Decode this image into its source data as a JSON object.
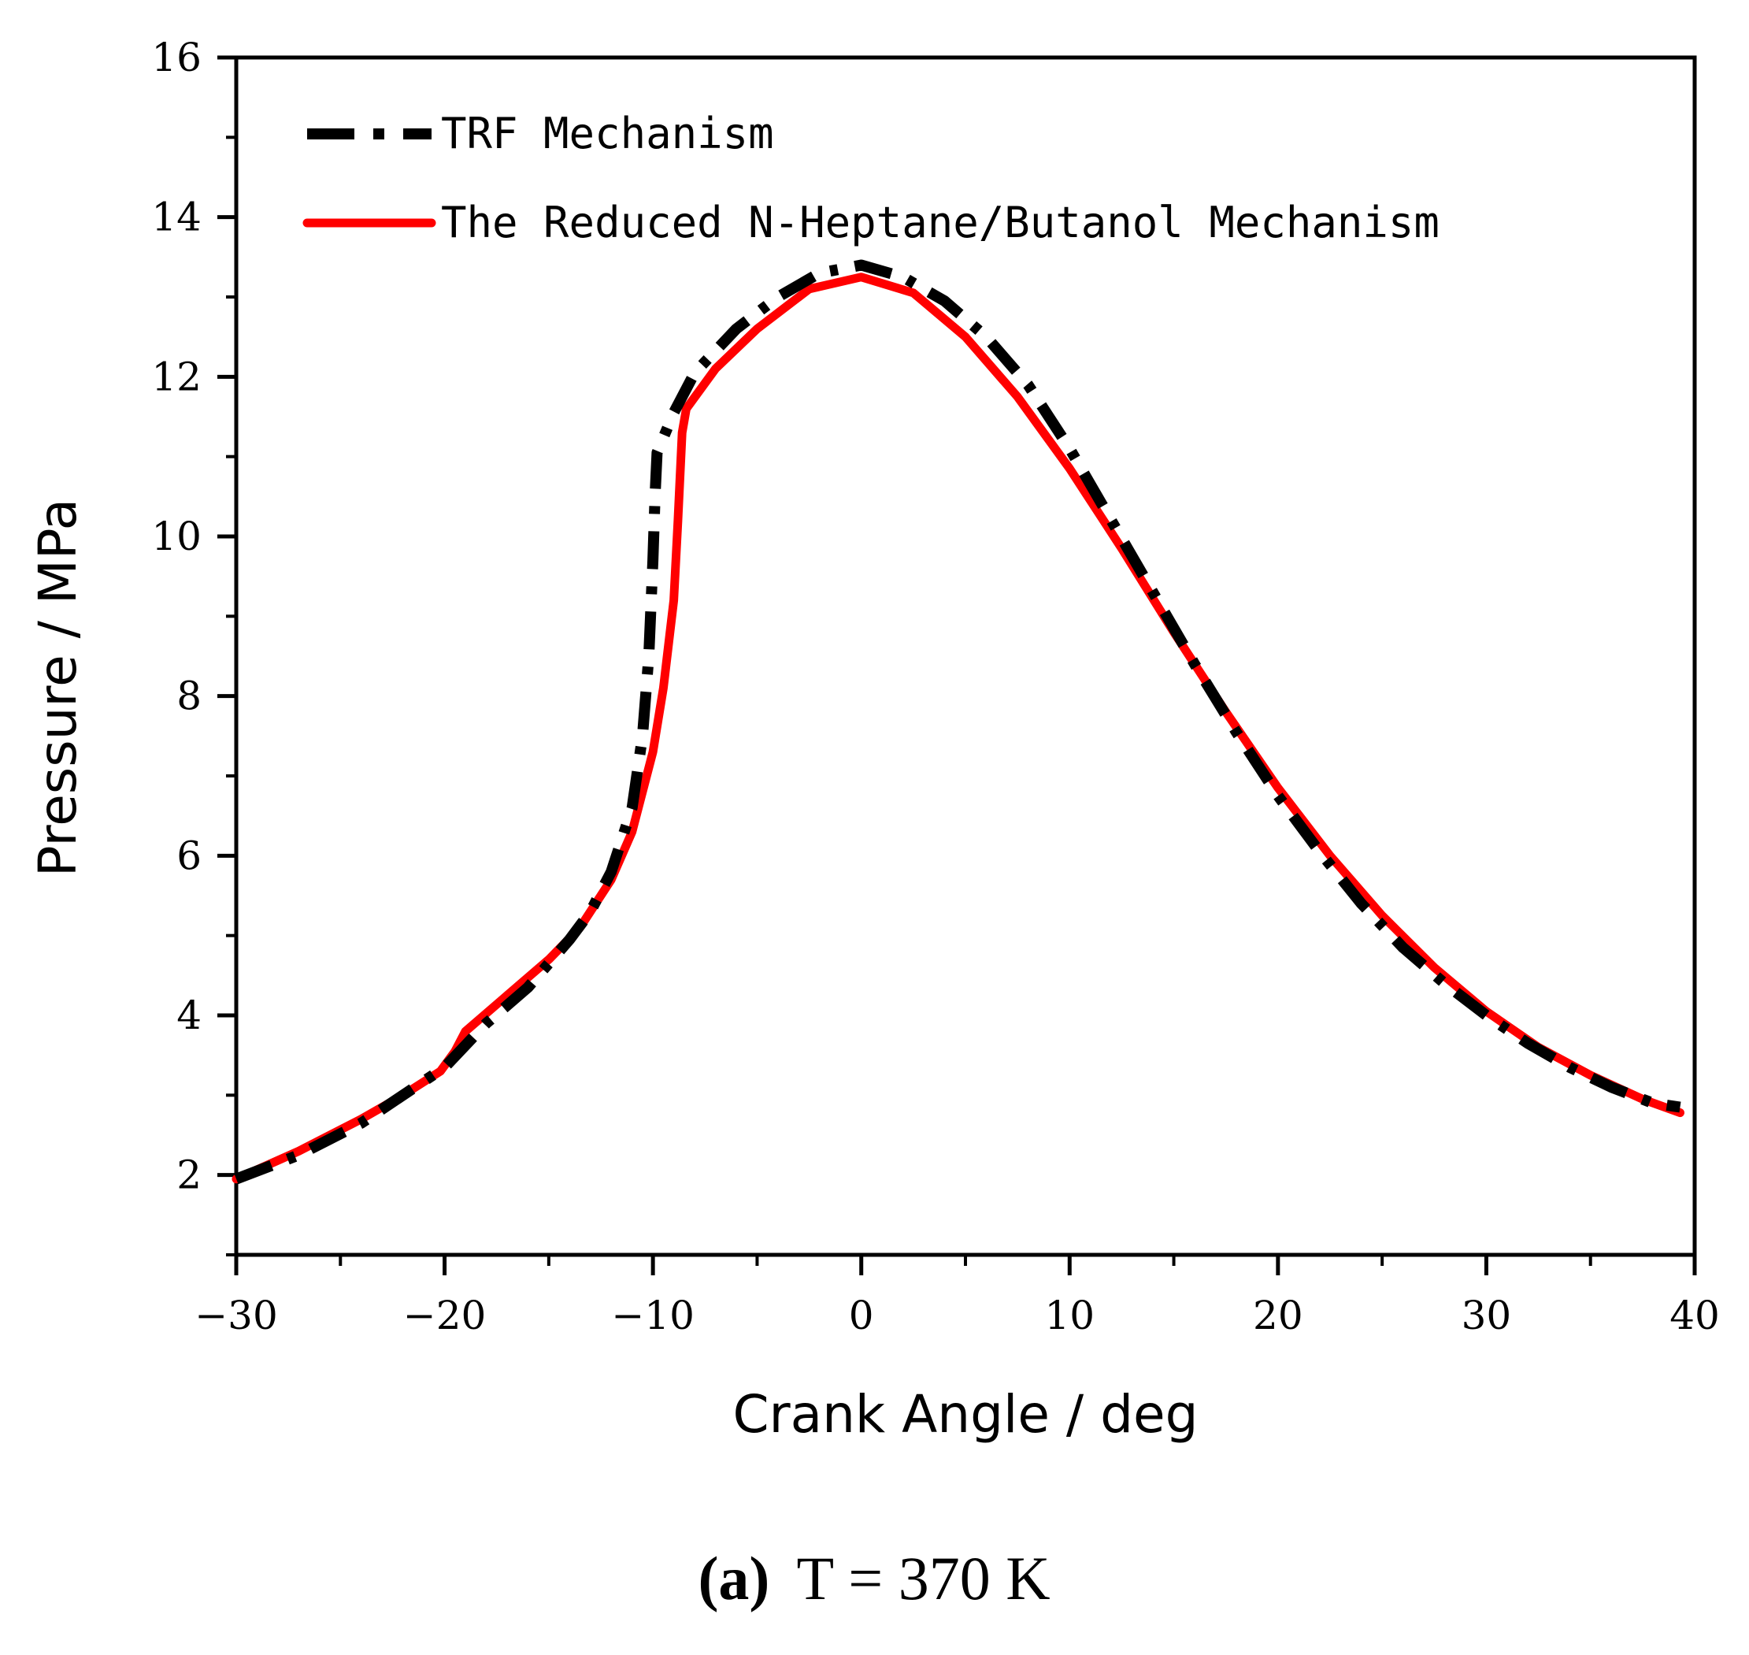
{
  "chart_data": {
    "type": "line",
    "title": "",
    "xlabel": "Crank Angle / deg",
    "ylabel": "Pressure / MPa",
    "xlim": [
      -30,
      40
    ],
    "ylim": [
      1,
      16
    ],
    "xticks": [
      -30,
      -20,
      -10,
      0,
      10,
      20,
      30,
      40
    ],
    "yticks": [
      2,
      4,
      6,
      8,
      10,
      12,
      14,
      16
    ],
    "xtick_labels": [
      "−30",
      "−20",
      "−10",
      "0",
      "10",
      "20",
      "30",
      "40"
    ],
    "ytick_labels": [
      "2",
      "4",
      "6",
      "8",
      "10",
      "12",
      "14",
      "16"
    ],
    "grid": false,
    "legend_position": "top-left",
    "series": [
      {
        "name": "TRF Mechanism",
        "color": "#000000",
        "style": "dash-dot",
        "points": [
          [
            -30,
            1.95
          ],
          [
            -27,
            2.25
          ],
          [
            -24,
            2.65
          ],
          [
            -22,
            3.0
          ],
          [
            -20,
            3.35
          ],
          [
            -18,
            3.9
          ],
          [
            -16,
            4.35
          ],
          [
            -14,
            4.95
          ],
          [
            -13,
            5.3
          ],
          [
            -12,
            5.8
          ],
          [
            -11,
            6.6
          ],
          [
            -10.5,
            7.5
          ],
          [
            -10.2,
            8.5
          ],
          [
            -10,
            9.7
          ],
          [
            -9.9,
            10.5
          ],
          [
            -9.8,
            11.05
          ],
          [
            -9,
            11.55
          ],
          [
            -8,
            12.05
          ],
          [
            -6,
            12.6
          ],
          [
            -4,
            13.0
          ],
          [
            -2,
            13.3
          ],
          [
            0,
            13.4
          ],
          [
            2,
            13.25
          ],
          [
            4,
            12.95
          ],
          [
            6,
            12.5
          ],
          [
            8,
            11.9
          ],
          [
            10,
            11.1
          ],
          [
            12,
            10.2
          ],
          [
            14,
            9.3
          ],
          [
            16,
            8.4
          ],
          [
            18,
            7.55
          ],
          [
            20,
            6.75
          ],
          [
            22,
            6.05
          ],
          [
            24,
            5.4
          ],
          [
            26,
            4.85
          ],
          [
            28,
            4.4
          ],
          [
            30,
            4.0
          ],
          [
            32,
            3.65
          ],
          [
            34,
            3.35
          ],
          [
            36,
            3.1
          ],
          [
            38,
            2.9
          ],
          [
            39.3,
            2.85
          ]
        ]
      },
      {
        "name": "The Reduced N-Heptane/Butanol Mechanism",
        "color": "#ff0000",
        "style": "solid",
        "points": [
          [
            -30,
            1.95
          ],
          [
            -27,
            2.3
          ],
          [
            -24,
            2.7
          ],
          [
            -22,
            3.0
          ],
          [
            -20.2,
            3.3
          ],
          [
            -19.5,
            3.55
          ],
          [
            -19,
            3.8
          ],
          [
            -17,
            4.25
          ],
          [
            -15,
            4.7
          ],
          [
            -13.5,
            5.1
          ],
          [
            -12,
            5.7
          ],
          [
            -11,
            6.3
          ],
          [
            -10,
            7.3
          ],
          [
            -9.5,
            8.1
          ],
          [
            -9,
            9.2
          ],
          [
            -8.8,
            10.2
          ],
          [
            -8.6,
            11.3
          ],
          [
            -8.4,
            11.6
          ],
          [
            -7,
            12.1
          ],
          [
            -5,
            12.6
          ],
          [
            -2.5,
            13.1
          ],
          [
            0,
            13.25
          ],
          [
            2.5,
            13.05
          ],
          [
            5,
            12.5
          ],
          [
            7.5,
            11.75
          ],
          [
            10,
            10.85
          ],
          [
            12.5,
            9.85
          ],
          [
            15,
            8.8
          ],
          [
            17.5,
            7.8
          ],
          [
            20,
            6.85
          ],
          [
            22.5,
            6.0
          ],
          [
            25,
            5.25
          ],
          [
            27.5,
            4.6
          ],
          [
            30,
            4.05
          ],
          [
            32.5,
            3.6
          ],
          [
            35,
            3.25
          ],
          [
            37.5,
            2.95
          ],
          [
            39.3,
            2.78
          ]
        ]
      }
    ],
    "caption_label": "(a)",
    "caption_text": "T = 370 K"
  }
}
